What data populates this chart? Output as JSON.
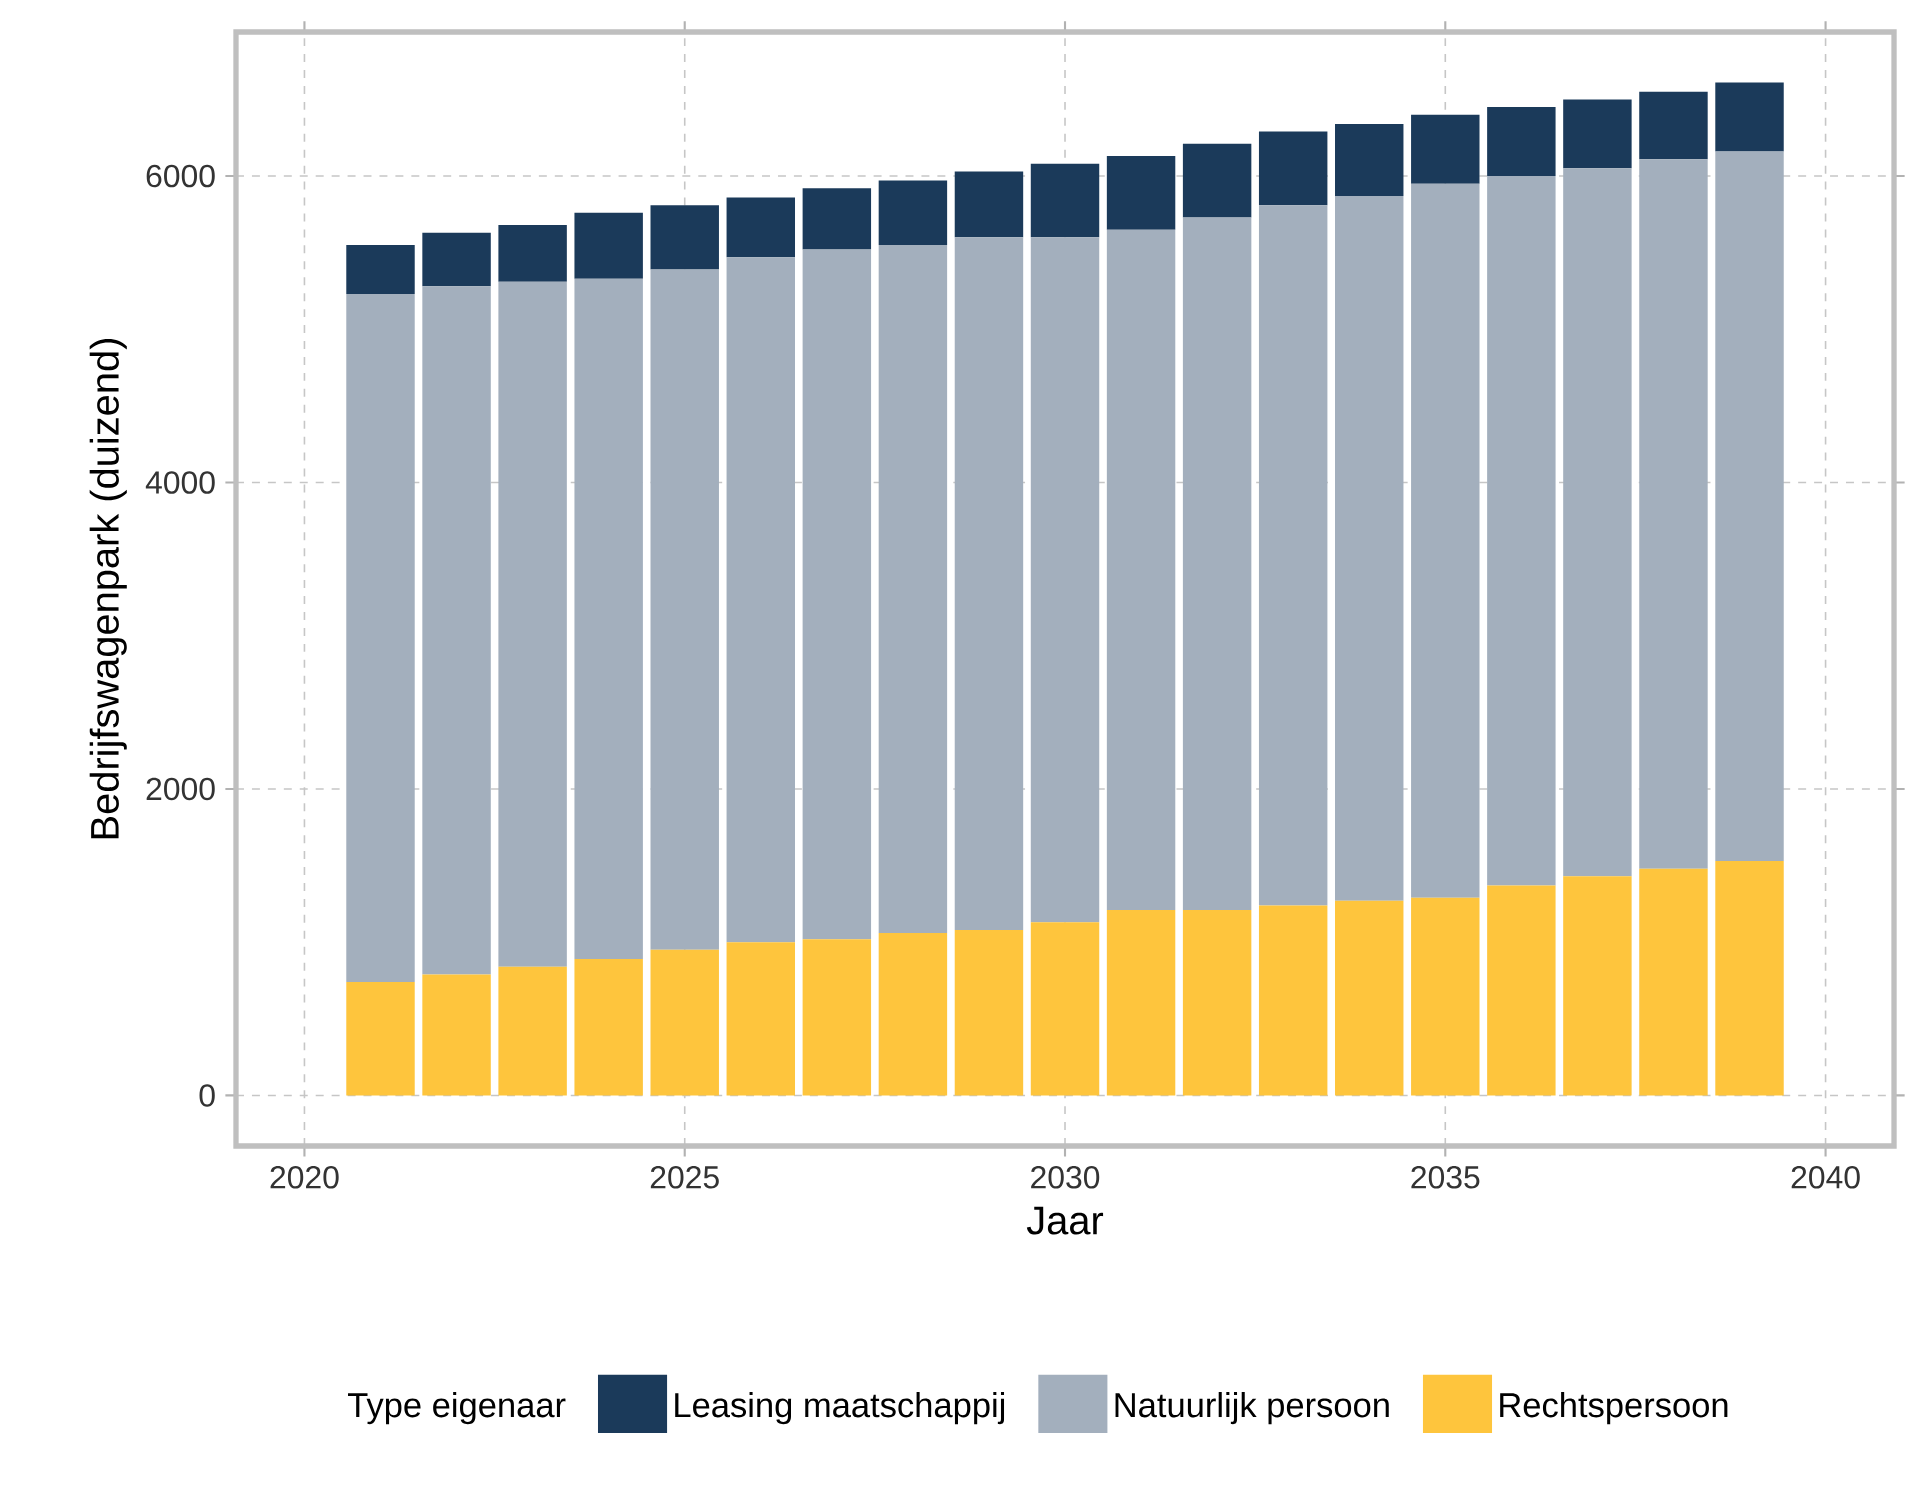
{
  "chart_data": {
    "type": "bar",
    "stacked": true,
    "xlabel": "Jaar",
    "ylabel": "Bedrijfswagenpark (duizend)",
    "legend_title": "Type eigenaar",
    "legend": "bottom",
    "grid": true,
    "x": [
      2021,
      2022,
      2023,
      2024,
      2025,
      2026,
      2027,
      2028,
      2029,
      2030,
      2031,
      2032,
      2033,
      2034,
      2035,
      2036,
      2037,
      2038,
      2039
    ],
    "xlim": [
      2019.1,
      2040.9
    ],
    "xticks": [
      2020,
      2025,
      2030,
      2035,
      2040
    ],
    "ylim": [
      -330,
      6940
    ],
    "yticks": [
      0,
      2000,
      4000,
      6000
    ],
    "series": [
      {
        "name": "Rechtspersoon",
        "color": "#fec53d",
        "values": [
          740,
          790,
          840,
          890,
          950,
          1000,
          1020,
          1060,
          1080,
          1130,
          1210,
          1210,
          1240,
          1270,
          1290,
          1370,
          1430,
          1480,
          1530
        ]
      },
      {
        "name": "Natuurlijk persoon",
        "color": "#a3afbd",
        "values": [
          4490,
          4490,
          4470,
          4440,
          4440,
          4470,
          4500,
          4490,
          4520,
          4470,
          4440,
          4520,
          4570,
          4600,
          4660,
          4630,
          4620,
          4630,
          4630
        ]
      },
      {
        "name": "Leasing maatschappij",
        "color": "#1b3a5a",
        "values": [
          320,
          350,
          370,
          430,
          420,
          390,
          400,
          420,
          430,
          480,
          480,
          480,
          480,
          470,
          450,
          450,
          450,
          440,
          450
        ]
      }
    ]
  }
}
